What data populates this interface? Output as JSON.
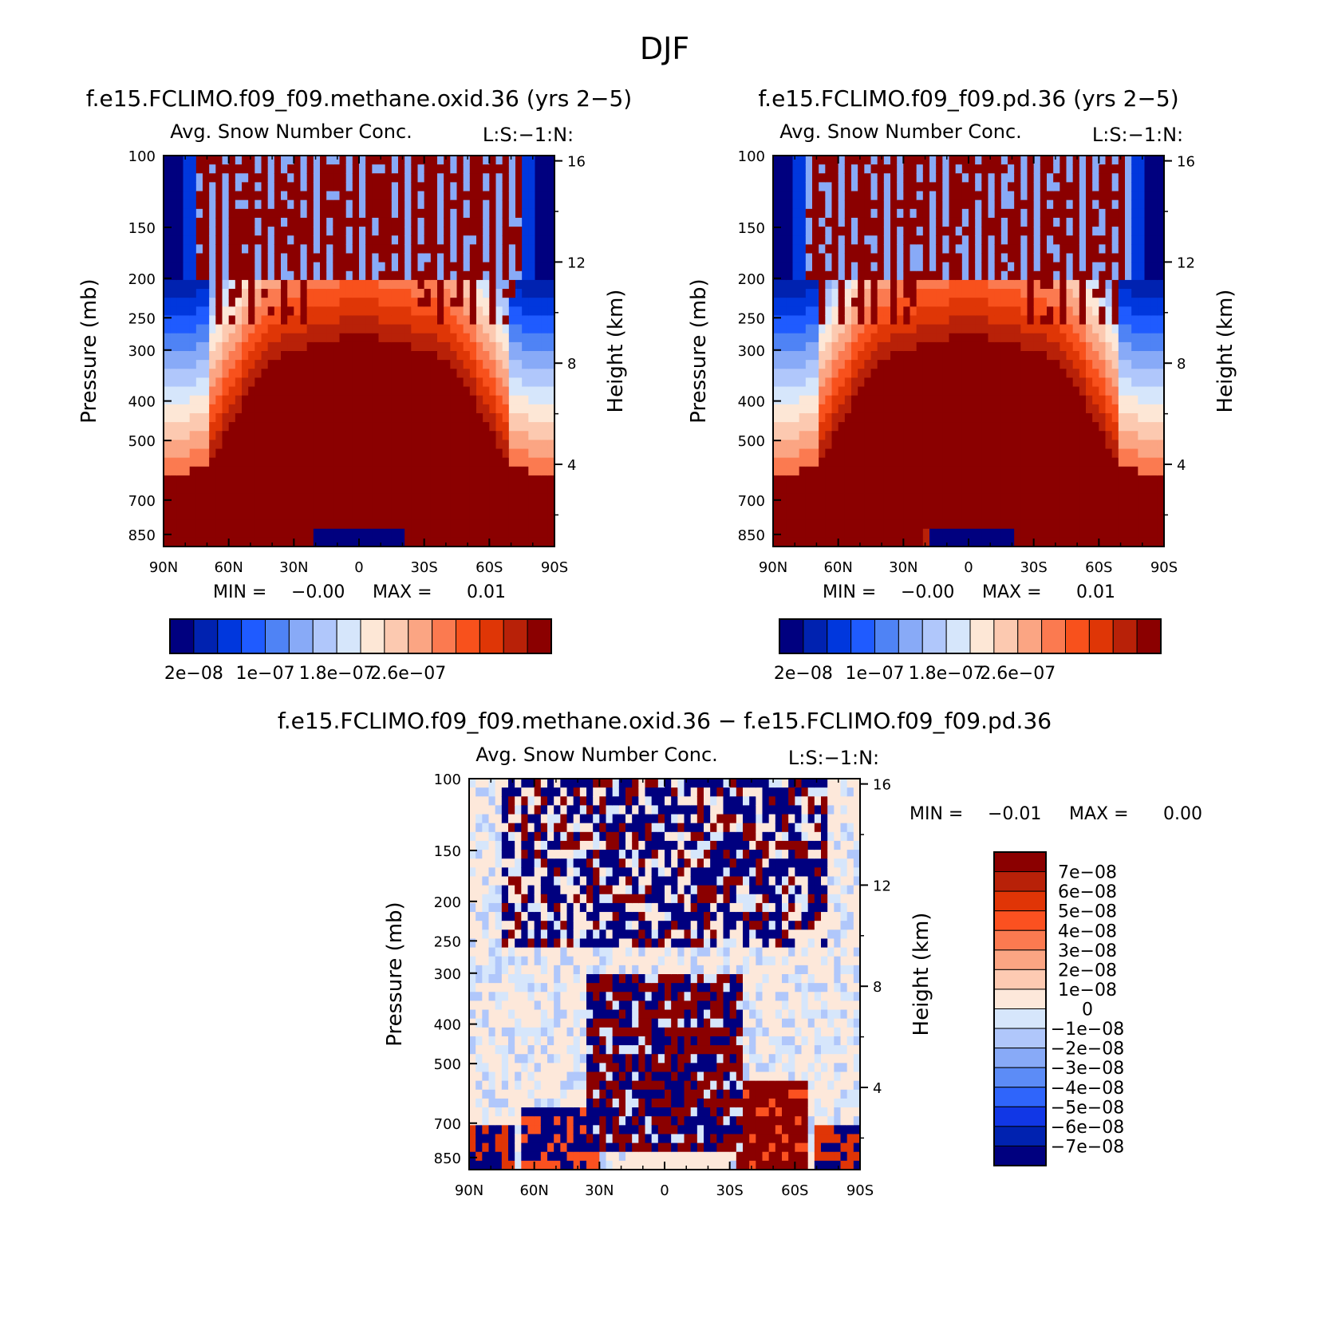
{
  "figure_title": "DJF",
  "chart_data": [
    {
      "type": "heatmap",
      "title": "f.e15.FCLIMO.f09_f09.methane.oxid.36 (yrs 2−5)",
      "field_label": "Avg. Snow Number Conc.",
      "units_label": "L:S:−1:N:",
      "xlabel": "",
      "ylabel": "Pressure (mb)",
      "ylabel_right": "Height (km)",
      "x_ticks": [
        "90N",
        "60N",
        "30N",
        "0",
        "30S",
        "60S",
        "90S"
      ],
      "y_ticks": [
        "100",
        "150",
        "200",
        "250",
        "300",
        "400",
        "500",
        "700",
        "850"
      ],
      "y2_ticks": [
        "16",
        "12",
        "8",
        "4"
      ],
      "stats": {
        "min_label": "MIN =",
        "min": "−0.00",
        "max_label": "MAX =",
        "max": "0.01"
      },
      "colorbar_labels": [
        "2e−08",
        "1e−07",
        "1.8e−07",
        "2.6e−07"
      ]
    },
    {
      "type": "heatmap",
      "title": "f.e15.FCLIMO.f09_f09.pd.36 (yrs 2−5)",
      "field_label": "Avg. Snow Number Conc.",
      "units_label": "L:S:−1:N:",
      "xlabel": "",
      "ylabel": "Pressure (mb)",
      "ylabel_right": "Height (km)",
      "x_ticks": [
        "90N",
        "60N",
        "30N",
        "0",
        "30S",
        "60S",
        "90S"
      ],
      "y_ticks": [
        "100",
        "150",
        "200",
        "250",
        "300",
        "400",
        "500",
        "700",
        "850"
      ],
      "y2_ticks": [
        "16",
        "12",
        "8",
        "4"
      ],
      "stats": {
        "min_label": "MIN =",
        "min": "−0.00",
        "max_label": "MAX =",
        "max": "0.01"
      },
      "colorbar_labels": [
        "2e−08",
        "1e−07",
        "1.8e−07",
        "2.6e−07"
      ]
    },
    {
      "type": "heatmap",
      "title": "f.e15.FCLIMO.f09_f09.methane.oxid.36 − f.e15.FCLIMO.f09_f09.pd.36",
      "field_label": "Avg. Snow Number Conc.",
      "units_label": "L:S:−1:N:",
      "xlabel": "",
      "ylabel": "Pressure (mb)",
      "ylabel_right": "Height (km)",
      "x_ticks": [
        "90N",
        "60N",
        "30N",
        "0",
        "30S",
        "60S",
        "90S"
      ],
      "y_ticks": [
        "100",
        "150",
        "200",
        "250",
        "300",
        "400",
        "500",
        "700",
        "850"
      ],
      "y2_ticks": [
        "16",
        "12",
        "8",
        "4"
      ],
      "stats": {
        "min_label": "MIN =",
        "min": "−0.01",
        "max_label": "MAX =",
        "max": "0.00"
      },
      "colorbar_labels": [
        "7e−08",
        "6e−08",
        "5e−08",
        "4e−08",
        "3e−08",
        "2e−08",
        "1e−08",
        "0",
        "−1e−08",
        "−2e−08",
        "−3e−08",
        "−4e−08",
        "−5e−08",
        "−6e−08",
        "−7e−08"
      ]
    }
  ],
  "colors": {
    "seq_palette": [
      "#00007f",
      "#0022b0",
      "#0037dd",
      "#1f5bff",
      "#4f83f5",
      "#88aaf7",
      "#b0c7fb",
      "#d6e6fb",
      "#fde7d6",
      "#fcc9b0",
      "#fba583",
      "#fb7a50",
      "#f8511c",
      "#df3606",
      "#b82108",
      "#8b0000"
    ],
    "diff_palette": [
      "#8b0000",
      "#b82108",
      "#e03506",
      "#fb5120",
      "#fb7a50",
      "#fba583",
      "#fdcab2",
      "#fde8da",
      "#d6e6fb",
      "#b0c7fb",
      "#88aaf7",
      "#5c8cf7",
      "#2f65fb",
      "#1137e6",
      "#0022b0",
      "#00007f"
    ]
  }
}
